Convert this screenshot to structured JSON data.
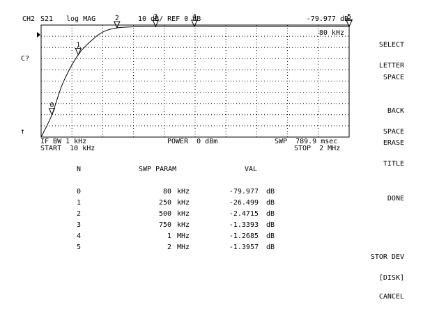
{
  "header": {
    "channel": "CH2",
    "param": "S21",
    "format": "log MAG",
    "scale": "10 dB/ REF 0 dB",
    "marker_readout": "-79.977 dB",
    "marker_freq": "80 kHz",
    "title_prompt": "C?",
    "up_arrow": "↑"
  },
  "footer": {
    "ifbw": "IF BW 1 kHz",
    "start": "START  10 kHz",
    "power": "POWER  0 dBm",
    "swp": "SWP  789.9 msec",
    "stop": "STOP  2 MHz"
  },
  "softkeys": [
    {
      "line1": "SELECT",
      "line2": "LETTER"
    },
    {
      "line1": "SPACE",
      "line2": ""
    },
    {
      "line1": "BACK",
      "line2": "SPACE"
    },
    {
      "line1": "ERASE",
      "line2": "TITLE"
    },
    {
      "line1": "DONE",
      "line2": ""
    },
    {
      "line1": "STOR DEV",
      "line2": "[DISK]"
    },
    {
      "line1": "CANCEL",
      "line2": ""
    }
  ],
  "table": {
    "headers": {
      "n": "N",
      "swp": "SWP PARAM",
      "val": "VAL"
    },
    "rows": [
      {
        "n": "0",
        "value": "80",
        "unit": "kHz",
        "val": "-79.977",
        "vunit": "dB"
      },
      {
        "n": "1",
        "value": "250",
        "unit": "kHz",
        "val": "-26.499",
        "vunit": "dB"
      },
      {
        "n": "2",
        "value": "500",
        "unit": "kHz",
        "val": "-2.4715",
        "vunit": "dB"
      },
      {
        "n": "3",
        "value": "750",
        "unit": "kHz",
        "val": "-1.3393",
        "vunit": "dB"
      },
      {
        "n": "4",
        "value": "1",
        "unit": "MHz",
        "val": "-1.2685",
        "vunit": "dB"
      },
      {
        "n": "5",
        "value": "2",
        "unit": "MHz",
        "val": "-1.3957",
        "vunit": "dB"
      }
    ]
  },
  "chart_data": {
    "type": "line",
    "x_unit": "kHz",
    "xlim": [
      10,
      2000
    ],
    "y_unit": "dB",
    "ylim": [
      -100,
      0
    ],
    "reference_level": 0,
    "divisions_x": 10,
    "divisions_y": 10,
    "grid": true,
    "markers": [
      {
        "label": "0",
        "x": 80,
        "y": -79.977
      },
      {
        "label": "1",
        "x": 250,
        "y": -26.499
      },
      {
        "label": "2",
        "x": 500,
        "y": -2.4715
      },
      {
        "label": "3",
        "x": 750,
        "y": -1.3393
      },
      {
        "label": "4",
        "x": 1000,
        "y": -1.2685
      },
      {
        "label": "5",
        "x": 2000,
        "y": -1.3957
      }
    ],
    "trace": [
      {
        "x": 10,
        "y": -140
      },
      {
        "x": 80,
        "y": -79.977
      },
      {
        "x": 150,
        "y": -52
      },
      {
        "x": 250,
        "y": -26.499
      },
      {
        "x": 350,
        "y": -12
      },
      {
        "x": 420,
        "y": -5.5
      },
      {
        "x": 500,
        "y": -2.4715
      },
      {
        "x": 600,
        "y": -1.6
      },
      {
        "x": 750,
        "y": -1.3393
      },
      {
        "x": 1000,
        "y": -1.2685
      },
      {
        "x": 1500,
        "y": -1.33
      },
      {
        "x": 2000,
        "y": -1.3957
      }
    ]
  }
}
